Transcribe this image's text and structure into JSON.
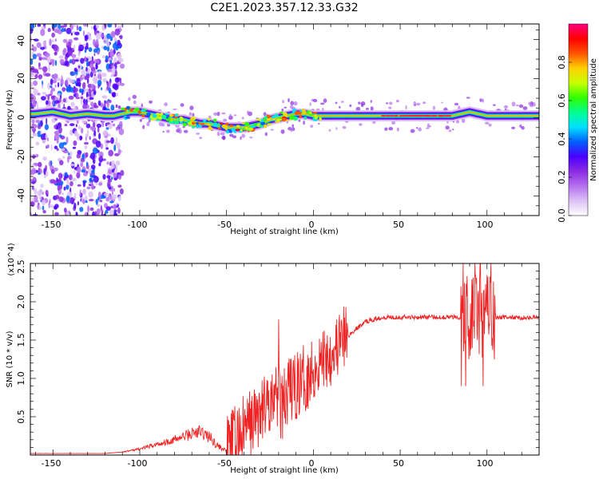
{
  "chart_data": [
    {
      "type": "heatmap",
      "title": "C2E1.2023.357.12.33.G32",
      "xlabel": "Height of straight line (km)",
      "ylabel": "Frequency (Hz)",
      "xlim": [
        -163,
        130
      ],
      "ylim": [
        -50,
        48
      ],
      "xticks": [
        "-150",
        "-100",
        "-50",
        "0",
        "50",
        "100"
      ],
      "yticks": [
        "-40",
        "-20",
        "0",
        "20",
        "40"
      ],
      "colorbar": {
        "label": "Normalized spectral amplitude",
        "ticks": [
          "0.0",
          "0.2",
          "0.4",
          "0.6",
          "0.8"
        ],
        "range": [
          0,
          1
        ],
        "colors": [
          "#ffffff",
          "#dcc1f5",
          "#b570f0",
          "#8a2be2",
          "#4b00ff",
          "#0060ff",
          "#00e0ff",
          "#00ff90",
          "#30ff00",
          "#c8ff00",
          "#ffd000",
          "#ff5500",
          "#ff0000",
          "#ff0080"
        ]
      },
      "ridge": {
        "x": [
          -160,
          -150,
          -140,
          -130,
          -120,
          -115,
          -110,
          -105,
          -100,
          -95,
          -90,
          -85,
          -80,
          -75,
          -70,
          -65,
          -60,
          -55,
          -50,
          -45,
          -40,
          -35,
          -30,
          -25,
          -20,
          -15,
          -10,
          -5,
          0,
          5,
          10,
          20,
          30,
          40,
          50,
          60,
          70,
          80,
          85,
          90,
          95,
          100,
          110,
          120,
          130
        ],
        "y": [
          2,
          3,
          1,
          2,
          1,
          1,
          2,
          3,
          3,
          2,
          1,
          0,
          -1,
          -1,
          -2,
          -3,
          -3,
          -4,
          -5,
          -5,
          -5,
          -4,
          -3,
          -1,
          0,
          1,
          2,
          2,
          1,
          1,
          1,
          1,
          1,
          1,
          1,
          1,
          1,
          1,
          2,
          3,
          2,
          1,
          1,
          1,
          1
        ]
      }
    },
    {
      "type": "line",
      "xlabel": "Height of straight line (km)",
      "ylabel": "SNR (10 * v/v)",
      "scale_label": "(x10^4)",
      "xlim": [
        -163,
        130
      ],
      "ylim": [
        0,
        2.5
      ],
      "xticks": [
        "-150",
        "-100",
        "-50",
        "0",
        "50",
        "100"
      ],
      "yticks": [
        "0.5",
        "1.0",
        "1.5",
        "2.0",
        "2.5"
      ],
      "series": [
        {
          "color": "#ee2222",
          "x": [
            -163,
            -140,
            -120,
            -110,
            -100,
            -90,
            -80,
            -70,
            -65,
            -60,
            -55,
            -50,
            -45,
            -40,
            -35,
            -30,
            -25,
            -20,
            -15,
            -10,
            -5,
            0,
            5,
            10,
            15,
            20,
            25,
            30,
            40,
            50,
            60,
            70,
            80,
            85,
            88,
            90,
            92,
            94,
            96,
            98,
            100,
            105,
            110,
            120,
            130
          ],
          "y": [
            0.02,
            0.02,
            0.02,
            0.04,
            0.08,
            0.14,
            0.2,
            0.28,
            0.3,
            0.24,
            0.12,
            0.05,
            0.22,
            0.33,
            0.45,
            0.55,
            0.7,
            0.82,
            0.8,
            0.9,
            1.0,
            1.12,
            1.25,
            1.35,
            1.45,
            1.55,
            1.65,
            1.74,
            1.8,
            1.8,
            1.8,
            1.8,
            1.8,
            1.8,
            1.8,
            1.8,
            1.8,
            1.8,
            1.8,
            1.8,
            1.8,
            1.79,
            1.8,
            1.79,
            1.8
          ]
        }
      ]
    }
  ]
}
